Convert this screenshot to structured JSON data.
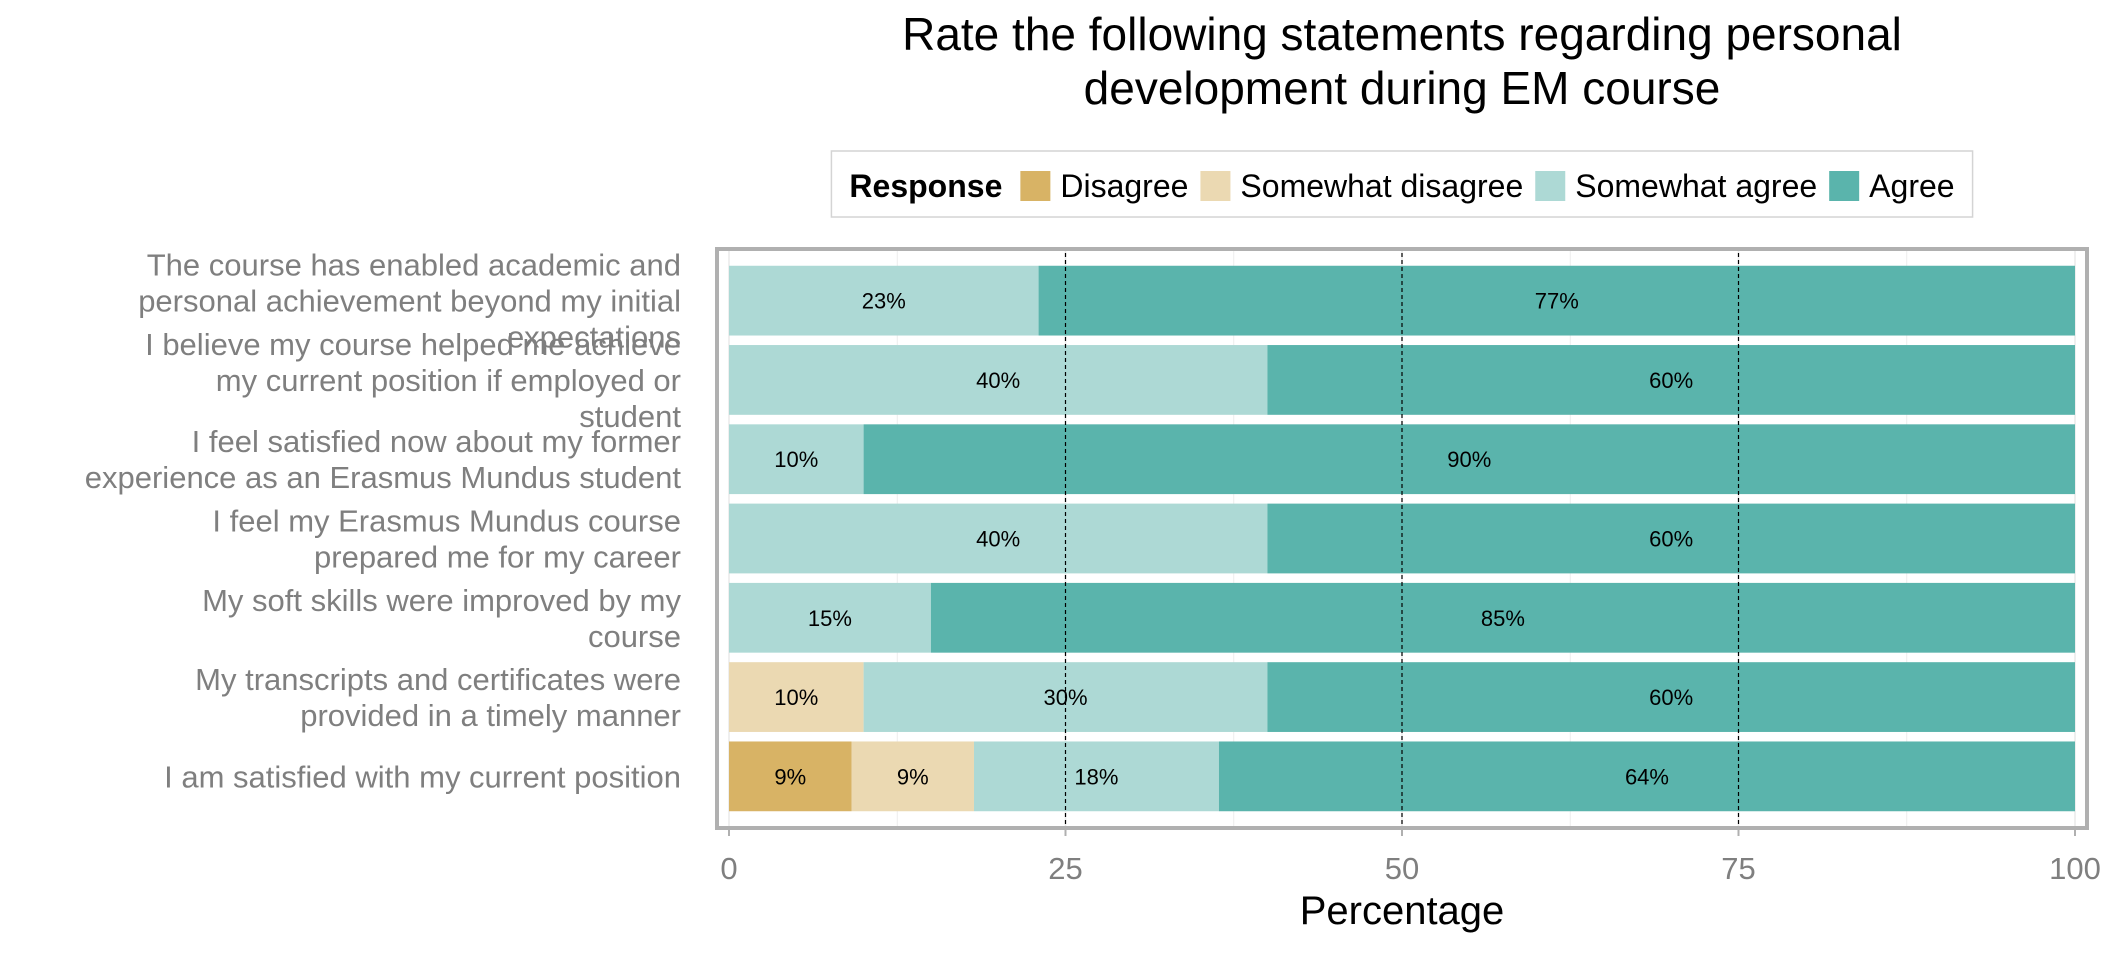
{
  "chart_data": {
    "type": "bar",
    "orientation": "horizontal",
    "stacked": true,
    "title": "Rate the following statements regarding personal\ndevelopment during EM course",
    "xlabel": "Percentage",
    "ylabel": "",
    "xlim": [
      0,
      100
    ],
    "xticks": [
      "0",
      "25",
      "50",
      "75",
      "100"
    ],
    "grid": true,
    "legend": {
      "title": "Response",
      "placement": "top",
      "entries": [
        "Disagree",
        "Somewhat disagree",
        "Somewhat agree",
        "Agree"
      ]
    },
    "colors": {
      "Disagree": "#D8B365",
      "Somewhat disagree": "#EBD9B2",
      "Somewhat agree": "#ADD9D5",
      "Agree": "#5AB4AC"
    },
    "categories": [
      "The course has enabled academic and\npersonal achievement beyond my initial\nexpectations",
      "I believe my course helped me achieve\nmy current position if employed or\nstudent",
      "I feel satisfied now about my former\nexperience as an Erasmus Mundus student",
      "I feel my Erasmus Mundus course\nprepared me for my career",
      "My soft skills were improved by my\ncourse",
      "My transcripts and certificates were\nprovided in a timely manner",
      "I am satisfied with my current position"
    ],
    "series": [
      {
        "name": "Disagree",
        "values": [
          0,
          0,
          0,
          0,
          0,
          0,
          9.1
        ],
        "labels": [
          "",
          "",
          "",
          "",
          "",
          "",
          "9%"
        ]
      },
      {
        "name": "Somewhat disagree",
        "values": [
          0,
          0,
          0,
          0,
          0,
          10,
          9.1
        ],
        "labels": [
          "",
          "",
          "",
          "",
          "",
          "10%",
          "9%"
        ]
      },
      {
        "name": "Somewhat agree",
        "values": [
          23,
          40,
          10,
          40,
          15,
          30,
          18.2
        ],
        "labels": [
          "23%",
          "40%",
          "10%",
          "40%",
          "15%",
          "30%",
          "18%"
        ]
      },
      {
        "name": "Agree",
        "values": [
          77,
          60,
          90,
          60,
          85,
          60,
          63.6
        ],
        "labels": [
          "77%",
          "60%",
          "90%",
          "60%",
          "85%",
          "60%",
          "64%"
        ]
      }
    ]
  }
}
